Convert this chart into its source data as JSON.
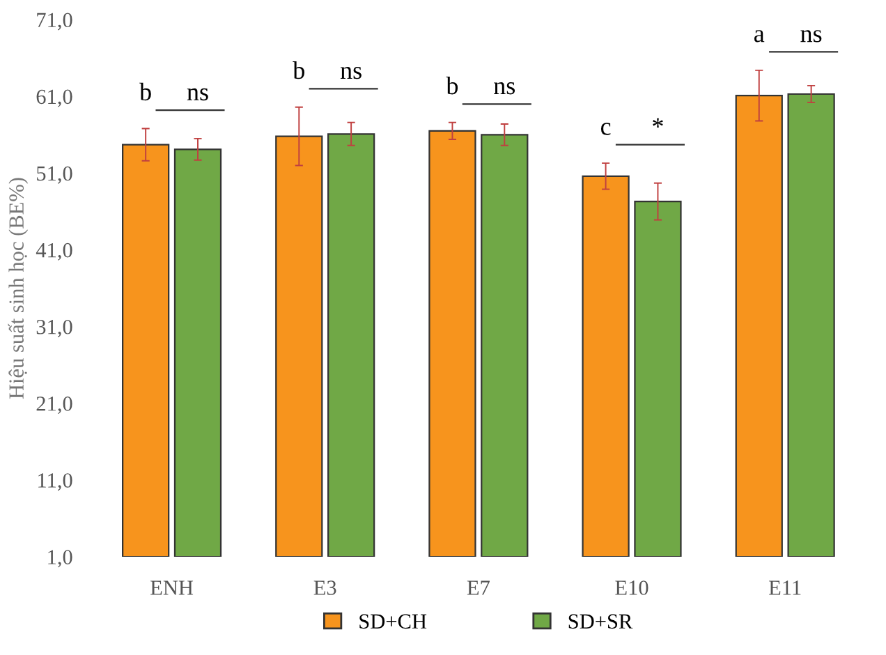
{
  "chart_data": {
    "type": "bar",
    "ylabel": "Hiệu suất sinh học (BE%)",
    "categories": [
      "ENH",
      "E3",
      "E7",
      "E10",
      "E11"
    ],
    "series": [
      {
        "name": "SD+CH",
        "color": "#f7941d",
        "values": [
          54.7,
          55.8,
          56.5,
          50.6,
          61.1
        ],
        "errors": [
          2.1,
          3.8,
          1.1,
          1.7,
          3.3
        ]
      },
      {
        "name": "SD+SR",
        "color": "#70a846",
        "values": [
          54.1,
          56.1,
          56.0,
          47.3,
          61.3
        ],
        "errors": [
          1.4,
          1.5,
          1.4,
          2.4,
          1.1
        ]
      }
    ],
    "ylim": [
      1,
      71
    ],
    "yticks": [
      {
        "value": 1,
        "label": "1,0"
      },
      {
        "value": 11,
        "label": "11,0"
      },
      {
        "value": 21,
        "label": "21,0"
      },
      {
        "value": 31,
        "label": "31,0"
      },
      {
        "value": 41,
        "label": "41,0"
      },
      {
        "value": 51,
        "label": "51,0"
      },
      {
        "value": 61,
        "label": "61,0"
      },
      {
        "value": 71,
        "label": "71,0"
      }
    ],
    "grid": false,
    "legend": "bottom",
    "annotations": [
      "b",
      "ns",
      "b",
      "ns",
      "b",
      "ns",
      "c",
      "*",
      "a",
      "ns"
    ]
  }
}
